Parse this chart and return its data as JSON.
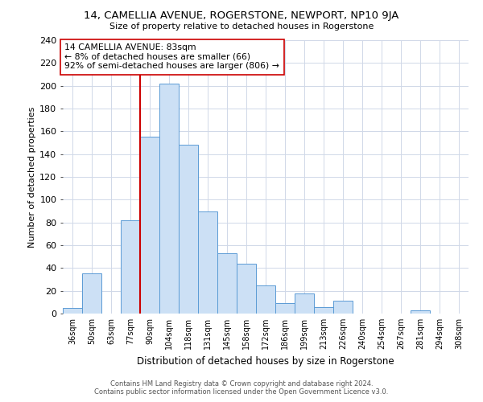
{
  "title": "14, CAMELLIA AVENUE, ROGERSTONE, NEWPORT, NP10 9JA",
  "subtitle": "Size of property relative to detached houses in Rogerstone",
  "xlabel": "Distribution of detached houses by size in Rogerstone",
  "ylabel": "Number of detached properties",
  "categories": [
    "36sqm",
    "50sqm",
    "63sqm",
    "77sqm",
    "90sqm",
    "104sqm",
    "118sqm",
    "131sqm",
    "145sqm",
    "158sqm",
    "172sqm",
    "186sqm",
    "199sqm",
    "213sqm",
    "226sqm",
    "240sqm",
    "254sqm",
    "267sqm",
    "281sqm",
    "294sqm",
    "308sqm"
  ],
  "values": [
    5,
    35,
    0,
    82,
    155,
    202,
    148,
    90,
    53,
    44,
    25,
    9,
    18,
    6,
    11,
    0,
    0,
    0,
    3,
    0,
    0
  ],
  "bar_color": "#cce0f5",
  "bar_edge_color": "#5b9bd5",
  "vline_x": 3.5,
  "vline_color": "#cc0000",
  "annotation_title": "14 CAMELLIA AVENUE: 83sqm",
  "annotation_line1": "← 8% of detached houses are smaller (66)",
  "annotation_line2": "92% of semi-detached houses are larger (806) →",
  "annotation_box_color": "#ffffff",
  "annotation_box_edge": "#cc0000",
  "ylim": [
    0,
    240
  ],
  "yticks": [
    0,
    20,
    40,
    60,
    80,
    100,
    120,
    140,
    160,
    180,
    200,
    220,
    240
  ],
  "footer1": "Contains HM Land Registry data © Crown copyright and database right 2024.",
  "footer2": "Contains public sector information licensed under the Open Government Licence v3.0.",
  "bg_color": "#ffffff",
  "grid_color": "#d0d8e8"
}
